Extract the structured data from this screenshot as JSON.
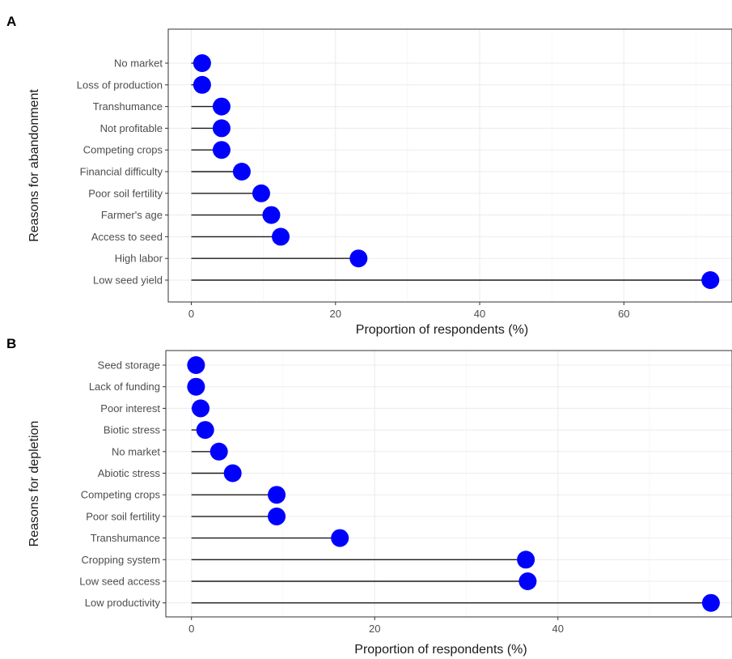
{
  "chart_data": [
    {
      "panel": "A",
      "type": "lollipop",
      "xlabel": "Proportion of respondents (%)",
      "ylabel": "Reasons for abandonment",
      "xlim": [
        -3.2,
        75
      ],
      "xticks": [
        0,
        20,
        40,
        60
      ],
      "grid": true,
      "point_color": "#0000ff",
      "categories": [
        "No market",
        "Loss of production",
        "Transhumance",
        "Not profitable",
        "Competing crops",
        "Financial difficulty",
        "Poor soil fertility",
        "Farmer's age",
        "Access to seed",
        "High labor",
        "Low seed yield"
      ],
      "values": [
        1.5,
        1.5,
        4.2,
        4.2,
        4.2,
        7.0,
        9.7,
        11.1,
        12.4,
        23.2,
        72.0
      ]
    },
    {
      "panel": "B",
      "type": "lollipop",
      "xlabel": "Proportion of respondents (%)",
      "ylabel": "Reasons for depletion",
      "xlim": [
        -2.8,
        59
      ],
      "xticks": [
        0,
        20,
        40
      ],
      "grid": true,
      "point_color": "#0000ff",
      "categories": [
        "Seed storage",
        "Lack of funding",
        "Poor interest",
        "Biotic stress",
        "No market",
        "Abiotic stress",
        "Competing crops",
        "Poor soil fertility",
        "Transhumance",
        "Cropping system",
        "Low seed access",
        "Low productivity"
      ],
      "values": [
        0.5,
        0.5,
        1.0,
        1.5,
        3.0,
        4.5,
        9.3,
        9.3,
        16.2,
        36.5,
        36.7,
        56.7
      ]
    }
  ]
}
